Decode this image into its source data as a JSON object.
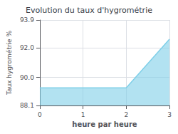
{
  "chart_data": {
    "type": "area",
    "title": "Evolution du taux d'hygrométrie",
    "xlabel": "heure par heure",
    "ylabel": "Taux hygrométrie %",
    "x": [
      0,
      2,
      3
    ],
    "values": [
      89.3,
      89.3,
      92.6
    ],
    "color": "#7fcfe8",
    "xlim": [
      0,
      3
    ],
    "ylim": [
      88.1,
      93.9
    ],
    "xticks": [
      0,
      1,
      2,
      3
    ],
    "yticks": [
      88.1,
      {
        "value": 90,
        "label": "90.0"
      },
      {
        "value": 92,
        "label": "92.0"
      },
      93.9
    ],
    "grid": true
  }
}
